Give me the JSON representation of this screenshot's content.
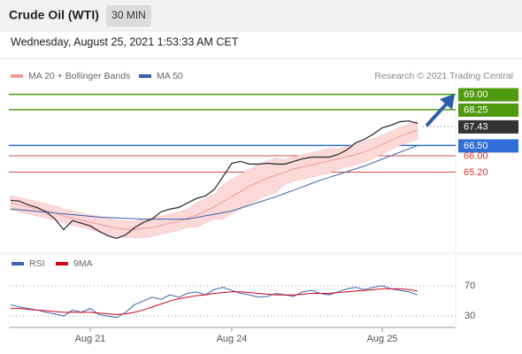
{
  "header": {
    "title": "Crude Oil (WTI)",
    "timeframe": "30 MIN",
    "date": "Wednesday, August 25, 2021 1:53:33 AM CET"
  },
  "chart_data": [
    {
      "type": "line",
      "credit": "Research © 2021 Trading Central",
      "ylim": [
        61.5,
        69.5
      ],
      "color": "#333333",
      "values": [
        63.82,
        63.78,
        63.6,
        63.47,
        63.26,
        62.91,
        62.39,
        62.83,
        62.7,
        62.57,
        62.31,
        62.09,
        61.96,
        62.13,
        62.48,
        62.74,
        62.91,
        63.26,
        63.39,
        63.47,
        63.69,
        63.91,
        64.03,
        64.34,
        64.98,
        65.63,
        65.72,
        65.59,
        65.59,
        65.63,
        65.59,
        65.59,
        65.72,
        65.85,
        65.93,
        65.93,
        65.93,
        66.06,
        66.28,
        66.63,
        66.8,
        67.06,
        67.36,
        67.49,
        67.66,
        67.7,
        67.58,
        null,
        null,
        null
      ],
      "series": [
        {
          "name": "MA 20 + Bollinger Bands",
          "color": "#f29a9a",
          "band_color": "#fbd9d9",
          "values": [
            63.7,
            63.6,
            63.5,
            63.4,
            63.3,
            63.2,
            63.05,
            62.95,
            62.85,
            62.75,
            62.65,
            62.55,
            62.45,
            62.4,
            62.4,
            62.45,
            62.5,
            62.6,
            62.7,
            62.8,
            62.95,
            63.1,
            63.3,
            63.5,
            63.75,
            64.0,
            64.25,
            64.5,
            64.7,
            64.9,
            65.05,
            65.2,
            65.35,
            65.45,
            65.55,
            65.65,
            65.75,
            65.85,
            65.95,
            66.05,
            66.2,
            66.35,
            66.55,
            66.75,
            66.95,
            67.1,
            67.25,
            null,
            null,
            null
          ],
          "upper": [
            64.05,
            63.95,
            63.85,
            63.75,
            63.65,
            63.55,
            63.4,
            63.3,
            63.2,
            63.1,
            63.05,
            62.95,
            62.85,
            62.8,
            62.8,
            62.9,
            62.95,
            63.05,
            63.15,
            63.25,
            63.4,
            63.7,
            63.9,
            64.1,
            64.6,
            64.85,
            65.1,
            65.35,
            65.55,
            65.75,
            65.9,
            65.8,
            65.95,
            66.05,
            66.15,
            66.25,
            66.35,
            66.35,
            66.45,
            66.55,
            66.7,
            66.85,
            67.0,
            67.2,
            67.4,
            67.55,
            67.7,
            null,
            null,
            null
          ],
          "lower": [
            63.35,
            63.25,
            63.15,
            63.05,
            62.95,
            62.85,
            62.7,
            62.6,
            62.5,
            62.4,
            62.25,
            62.15,
            62.05,
            62.0,
            62.0,
            62.0,
            62.05,
            62.15,
            62.25,
            62.35,
            62.5,
            62.5,
            62.7,
            62.9,
            62.9,
            63.15,
            63.4,
            63.65,
            63.85,
            64.05,
            64.2,
            64.6,
            64.75,
            64.85,
            64.95,
            65.05,
            65.15,
            65.35,
            65.45,
            65.55,
            65.7,
            65.85,
            66.1,
            66.3,
            66.5,
            66.65,
            66.8,
            null,
            null,
            null
          ]
        },
        {
          "name": "MA 50",
          "color": "#3a5ea8",
          "values": [
            63.4,
            63.36,
            63.32,
            63.28,
            63.24,
            63.2,
            63.16,
            63.12,
            63.08,
            63.04,
            63.0,
            62.98,
            62.96,
            62.94,
            62.92,
            62.9,
            62.9,
            62.9,
            62.9,
            62.9,
            62.9,
            62.98,
            63.06,
            63.14,
            63.22,
            63.3,
            63.44,
            63.58,
            63.72,
            63.86,
            64.0,
            64.16,
            64.32,
            64.48,
            64.64,
            64.8,
            64.94,
            65.08,
            65.22,
            65.36,
            65.5,
            65.67,
            65.83,
            66.0,
            66.17,
            66.33,
            66.5,
            null,
            null,
            null
          ]
        }
      ],
      "levels": [
        {
          "value": 69,
          "label": "69.00",
          "color": "#4f9a0f",
          "style": "box",
          "line": "solid"
        },
        {
          "value": 68.25,
          "label": "68.25",
          "color": "#4f9a0f",
          "style": "box",
          "line": "solid"
        },
        {
          "value": 67.43,
          "label": "67.43",
          "color": "#333333",
          "style": "box",
          "line": "dotted"
        },
        {
          "value": 66.5,
          "label": "66.50",
          "color": "#2f6fd6",
          "style": "box",
          "line": "solid"
        },
        {
          "value": 66,
          "label": "66.00",
          "color": "#d0342c",
          "style": "text",
          "line": "thin"
        },
        {
          "value": 65.2,
          "label": "65.20",
          "color": "#d0342c",
          "style": "text",
          "line": "thin"
        }
      ]
    },
    {
      "type": "line",
      "ylim": [
        15,
        105
      ],
      "yticks": [
        30,
        70
      ],
      "categories": [
        null,
        null,
        null,
        null,
        null,
        null,
        null,
        null,
        null,
        "Aug 21",
        null,
        null,
        null,
        null,
        null,
        null,
        null,
        null,
        null,
        null,
        null,
        null,
        null,
        null,
        null,
        "Aug 24",
        null,
        null,
        null,
        null,
        null,
        null,
        null,
        null,
        null,
        null,
        null,
        null,
        null,
        null,
        null,
        null,
        "Aug 25",
        null,
        null,
        null,
        null,
        null,
        null,
        null
      ],
      "series": [
        {
          "name": "RSI",
          "color": "#3d63b0",
          "values": [
            45,
            42,
            40,
            38,
            35,
            33,
            30,
            38,
            35,
            40,
            32,
            30,
            28,
            35,
            45,
            50,
            55,
            52,
            58,
            55,
            60,
            62,
            58,
            65,
            68,
            64,
            60,
            58,
            55,
            56,
            60,
            58,
            56,
            62,
            64,
            60,
            58,
            62,
            66,
            68,
            65,
            68,
            70,
            66,
            64,
            62,
            58,
            null,
            null,
            null
          ]
        },
        {
          "name": "9MA",
          "color": "#d0021b",
          "values": [
            40,
            40,
            39,
            38,
            37,
            36,
            35,
            35,
            35,
            35,
            34,
            33,
            32,
            33,
            35,
            38,
            42,
            46,
            50,
            53,
            55,
            57,
            58,
            60,
            61,
            62,
            62,
            61,
            60,
            59,
            58,
            58,
            58,
            59,
            60,
            60,
            60,
            61,
            62,
            63,
            64,
            65,
            66,
            66,
            66,
            65,
            63,
            null,
            null,
            null
          ]
        }
      ]
    }
  ]
}
